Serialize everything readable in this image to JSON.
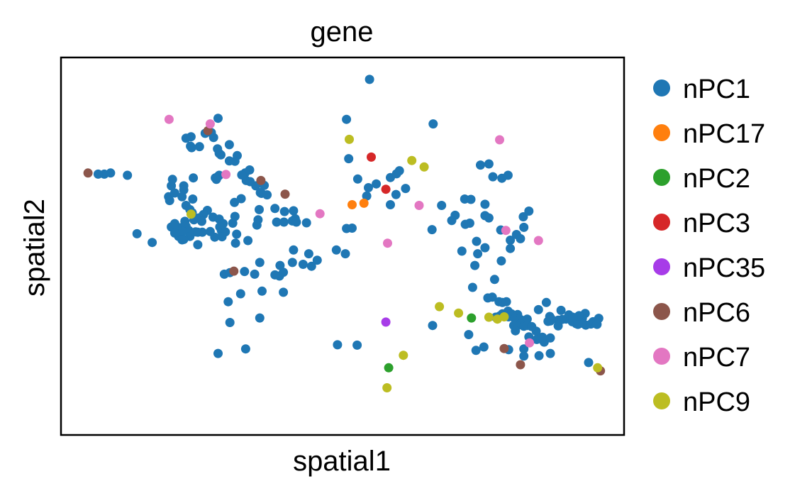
{
  "chart_data": {
    "type": "scatter",
    "title": "gene",
    "xlabel": "spatial1",
    "ylabel": "spatial2",
    "xlim": [
      0,
      1000
    ],
    "ylim": [
      0,
      1000
    ],
    "grid": false,
    "ticks": false,
    "legend": {
      "placement": "right-outside"
    },
    "series": [
      {
        "name": "nPC1",
        "color": "#1f77b4",
        "points": [
          [
            548,
            942
          ],
          [
            507,
            836
          ],
          [
            661,
            824
          ],
          [
            279,
            839
          ],
          [
            231,
            790
          ],
          [
            222,
            786
          ],
          [
            230,
            765
          ],
          [
            246,
            764
          ],
          [
            232,
            761
          ],
          [
            256,
            799
          ],
          [
            267,
            801
          ],
          [
            271,
            788
          ],
          [
            299,
            769
          ],
          [
            281,
            746
          ],
          [
            284,
            742
          ],
          [
            299,
            726
          ],
          [
            278,
            758
          ],
          [
            313,
            740
          ],
          [
            309,
            725
          ],
          [
            335,
            702
          ],
          [
            327,
            694
          ],
          [
            281,
            688
          ],
          [
            279,
            685
          ],
          [
            274,
            681
          ],
          [
            276,
            677
          ],
          [
            235,
            681
          ],
          [
            218,
            660
          ],
          [
            218,
            649
          ],
          [
            215,
            631
          ],
          [
            191,
            631
          ],
          [
            202,
            641
          ],
          [
            196,
            660
          ],
          [
            234,
            625
          ],
          [
            222,
            608
          ],
          [
            229,
            597
          ],
          [
            233,
            589
          ],
          [
            236,
            570
          ],
          [
            220,
            566
          ],
          [
            222,
            553
          ],
          [
            202,
            560
          ],
          [
            227,
            542
          ],
          [
            209,
            526
          ],
          [
            213,
            549
          ],
          [
            202,
            550
          ],
          [
            198,
            550
          ],
          [
            196,
            551
          ],
          [
            208,
            543
          ],
          [
            216,
            539
          ],
          [
            202,
            558
          ],
          [
            260,
            595
          ],
          [
            253,
            584
          ],
          [
            245,
            575
          ],
          [
            229,
            526
          ],
          [
            239,
            538
          ],
          [
            251,
            537
          ],
          [
            270,
            577
          ],
          [
            281,
            572
          ],
          [
            288,
            560
          ],
          [
            305,
            561
          ],
          [
            285,
            541
          ],
          [
            265,
            539
          ],
          [
            273,
            524
          ],
          [
            282,
            551
          ],
          [
            292,
            538
          ],
          [
            309,
            579
          ],
          [
            308,
            616
          ],
          [
            320,
            626
          ],
          [
            329,
            674
          ],
          [
            321,
            689
          ],
          [
            336,
            671
          ],
          [
            346,
            660
          ],
          [
            354,
            642
          ],
          [
            356,
            640
          ],
          [
            366,
            636
          ],
          [
            361,
            661
          ],
          [
            352,
            597
          ],
          [
            350,
            570
          ],
          [
            348,
            556
          ],
          [
            383,
            564
          ],
          [
            380,
            600
          ],
          [
            396,
            564
          ],
          [
            397,
            592
          ],
          [
            413,
            594
          ],
          [
            416,
            573
          ],
          [
            411,
            567
          ],
          [
            418,
            564
          ],
          [
            332,
            515
          ],
          [
            310,
            508
          ],
          [
            312,
            532
          ],
          [
            243,
            504
          ],
          [
            218,
            518
          ],
          [
            202,
            535
          ],
          [
            162,
            510
          ],
          [
            135,
            533
          ],
          [
            77,
            691
          ],
          [
            118,
            688
          ],
          [
            66,
            691
          ],
          [
            88,
            694
          ],
          [
            198,
            677
          ],
          [
            193,
            621
          ],
          [
            250,
            566
          ],
          [
            215,
            517
          ],
          [
            243,
            537
          ],
          [
            286,
            525
          ],
          [
            290,
            426
          ],
          [
            326,
            433
          ],
          [
            436,
            562
          ],
          [
            440,
            480
          ],
          [
            505,
            480
          ],
          [
            489,
            490
          ],
          [
            507,
            547
          ],
          [
            517,
            548
          ],
          [
            595,
            637
          ],
          [
            585,
            682
          ],
          [
            511,
            732
          ],
          [
            596,
            692
          ],
          [
            527,
            678
          ],
          [
            546,
            655
          ],
          [
            560,
            665
          ],
          [
            543,
            633
          ],
          [
            612,
            653
          ],
          [
            585,
            610
          ],
          [
            601,
            700
          ],
          [
            745,
            715
          ],
          [
            760,
            718
          ],
          [
            794,
            688
          ],
          [
            767,
            684
          ],
          [
            783,
            680
          ],
          [
            717,
            625
          ],
          [
            728,
            624
          ],
          [
            726,
            561
          ],
          [
            718,
            558
          ],
          [
            700,
            582
          ],
          [
            676,
            608
          ],
          [
            659,
            544
          ],
          [
            694,
            568
          ],
          [
            753,
            581
          ],
          [
            753,
            611
          ],
          [
            760,
            575
          ],
          [
            753,
            496
          ],
          [
            735,
            449
          ],
          [
            740,
            480
          ],
          [
            770,
            412
          ],
          [
            782,
            461
          ],
          [
            816,
            520
          ],
          [
            809,
            531
          ],
          [
            822,
            550
          ],
          [
            821,
            578
          ],
          [
            831,
            593
          ],
          [
            781,
            543
          ],
          [
            798,
            516
          ],
          [
            798,
            494
          ],
          [
            738,
            513
          ],
          [
            712,
            487
          ],
          [
            731,
            391
          ],
          [
            758,
            363
          ],
          [
            766,
            365
          ],
          [
            778,
            353
          ],
          [
            784,
            351
          ],
          [
            791,
            353
          ],
          [
            794,
            328
          ],
          [
            772,
            312
          ],
          [
            779,
            315
          ],
          [
            784,
            321
          ],
          [
            788,
            315
          ],
          [
            795,
            313
          ],
          [
            800,
            321
          ],
          [
            811,
            319
          ],
          [
            806,
            308
          ],
          [
            816,
            306
          ],
          [
            828,
            307
          ],
          [
            816,
            295
          ],
          [
            810,
            289
          ],
          [
            804,
            290
          ],
          [
            807,
            276
          ],
          [
            822,
            228
          ],
          [
            831,
            260
          ],
          [
            845,
            253
          ],
          [
            858,
            246
          ],
          [
            869,
            257
          ],
          [
            855,
            259
          ],
          [
            844,
            275
          ],
          [
            822,
            288
          ],
          [
            828,
            290
          ],
          [
            836,
            287
          ],
          [
            869,
            302
          ],
          [
            870,
            309
          ],
          [
            868,
            314
          ],
          [
            865,
            301
          ],
          [
            883,
            304
          ],
          [
            897,
            307
          ],
          [
            908,
            300
          ],
          [
            915,
            295
          ],
          [
            932,
            291
          ],
          [
            941,
            294
          ],
          [
            945,
            300
          ],
          [
            949,
            299
          ],
          [
            952,
            293
          ],
          [
            955,
            309
          ],
          [
            931,
            322
          ],
          [
            926,
            309
          ],
          [
            926,
            296
          ],
          [
            918,
            293
          ],
          [
            920,
            316
          ],
          [
            902,
            318
          ],
          [
            890,
            306
          ],
          [
            883,
            289
          ],
          [
            871,
            306
          ],
          [
            848,
            332
          ],
          [
            862,
            351
          ],
          [
            888,
            330
          ],
          [
            909,
            312
          ],
          [
            937,
            192
          ],
          [
            869,
            216
          ],
          [
            849,
            210
          ],
          [
            822,
            209
          ],
          [
            795,
            226
          ],
          [
            737,
            224
          ],
          [
            751,
            233
          ],
          [
            724,
            266
          ],
          [
            660,
            290
          ],
          [
            526,
            238
          ],
          [
            491,
            239
          ],
          [
            395,
            378
          ],
          [
            353,
            310
          ],
          [
            328,
            228
          ],
          [
            279,
            216
          ],
          [
            300,
            298
          ],
          [
            297,
            353
          ],
          [
            344,
            426
          ],
          [
            388,
            421
          ],
          [
            395,
            431
          ],
          [
            455,
            463
          ],
          [
            445,
            447
          ],
          [
            430,
            452
          ],
          [
            413,
            490
          ],
          [
            357,
            381
          ],
          [
            300,
            430
          ],
          [
            319,
            374
          ],
          [
            411,
            457
          ],
          [
            389,
            449
          ],
          [
            380,
            424
          ],
          [
            353,
            457
          ]
        ]
      },
      {
        "name": "nPC17",
        "color": "#ff7f0e",
        "points": [
          [
            517,
            610
          ],
          [
            538,
            614
          ]
        ]
      },
      {
        "name": "nPC2",
        "color": "#2ca02c",
        "points": [
          [
            729,
            310
          ],
          [
            582,
            178
          ]
        ]
      },
      {
        "name": "nPC3",
        "color": "#d62728",
        "points": [
          [
            551,
            736
          ],
          [
            577,
            651
          ]
        ]
      },
      {
        "name": "nPC35",
        "color": "#a73ce8",
        "points": [
          [
            577,
            299
          ]
        ]
      },
      {
        "name": "nPC6",
        "color": "#8c564b",
        "points": [
          [
            261,
            806
          ],
          [
            355,
            674
          ],
          [
            398,
            638
          ],
          [
            307,
            434
          ],
          [
            816,
            186
          ],
          [
            787,
            229
          ],
          [
            958,
            170
          ],
          [
            48,
            694
          ]
        ]
      },
      {
        "name": "nPC7",
        "color": "#e377c2",
        "points": [
          [
            192,
            836
          ],
          [
            265,
            824
          ],
          [
            293,
            690
          ],
          [
            460,
            586
          ],
          [
            580,
            508
          ],
          [
            636,
            608
          ],
          [
            779,
            782
          ],
          [
            790,
            542
          ],
          [
            848,
            515
          ],
          [
            832,
            244
          ]
        ]
      },
      {
        "name": "nPC9",
        "color": "#bcbd22",
        "points": [
          [
            512,
            783
          ],
          [
            623,
            727
          ],
          [
            645,
            710
          ],
          [
            231,
            585
          ],
          [
            672,
            340
          ],
          [
            775,
            307
          ],
          [
            787,
            313
          ],
          [
            760,
            312
          ],
          [
            706,
            323
          ],
          [
            608,
            211
          ],
          [
            579,
            125
          ],
          [
            953,
            178
          ]
        ]
      }
    ]
  }
}
